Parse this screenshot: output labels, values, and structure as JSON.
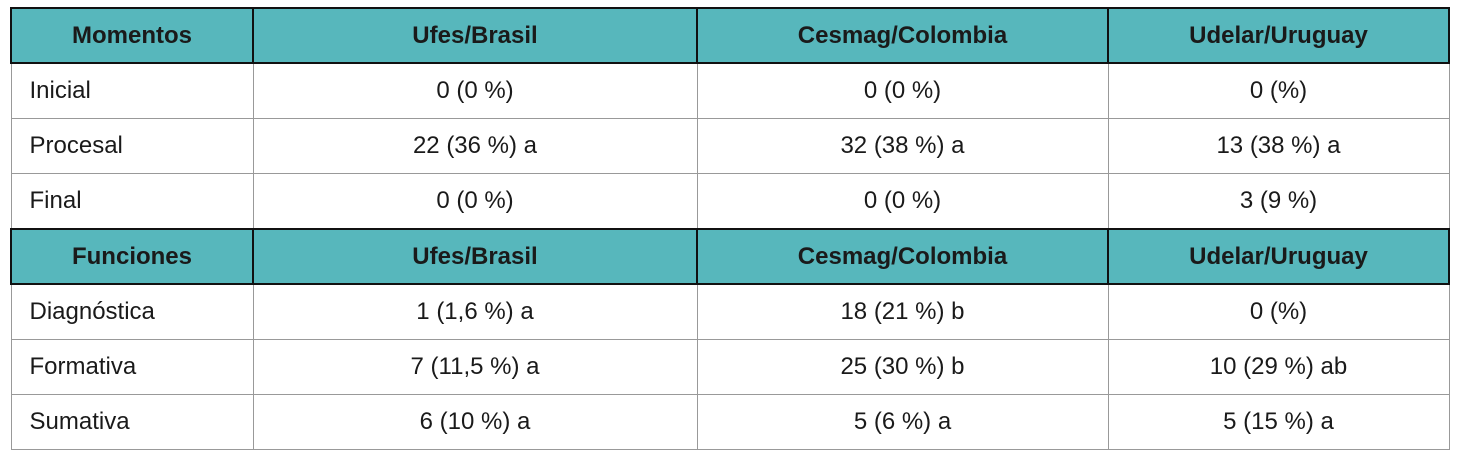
{
  "colors": {
    "header_background": "#57B7BC",
    "header_border": "#111111",
    "cell_border": "#999999",
    "text": "#1A1A1A",
    "page_background": "#FFFFFF"
  },
  "table": {
    "sections": [
      {
        "headers": [
          "Momentos",
          "Ufes/Brasil",
          "Cesmag/Colombia",
          "Udelar/Uruguay"
        ],
        "rows": [
          [
            "Inicial",
            "0 (0 %)",
            "0 (0 %)",
            "0 (%)"
          ],
          [
            "Procesal",
            "22 (36 %) a",
            "32 (38 %) a",
            "13 (38 %) a"
          ],
          [
            "Final",
            "0 (0 %)",
            "0 (0 %)",
            "3 (9 %)"
          ]
        ]
      },
      {
        "headers": [
          "Funciones",
          "Ufes/Brasil",
          "Cesmag/Colombia",
          "Udelar/Uruguay"
        ],
        "rows": [
          [
            "Diagnóstica",
            "1 (1,6 %) a",
            "18 (21 %) b",
            "0 (%)"
          ],
          [
            "Formativa",
            "7 (11,5 %) a",
            "25 (30 %) b",
            "10 (29 %) ab"
          ],
          [
            "Sumativa",
            "6 (10 %) a",
            "5 (6 %) a",
            "5 (15 %) a"
          ]
        ]
      }
    ]
  }
}
